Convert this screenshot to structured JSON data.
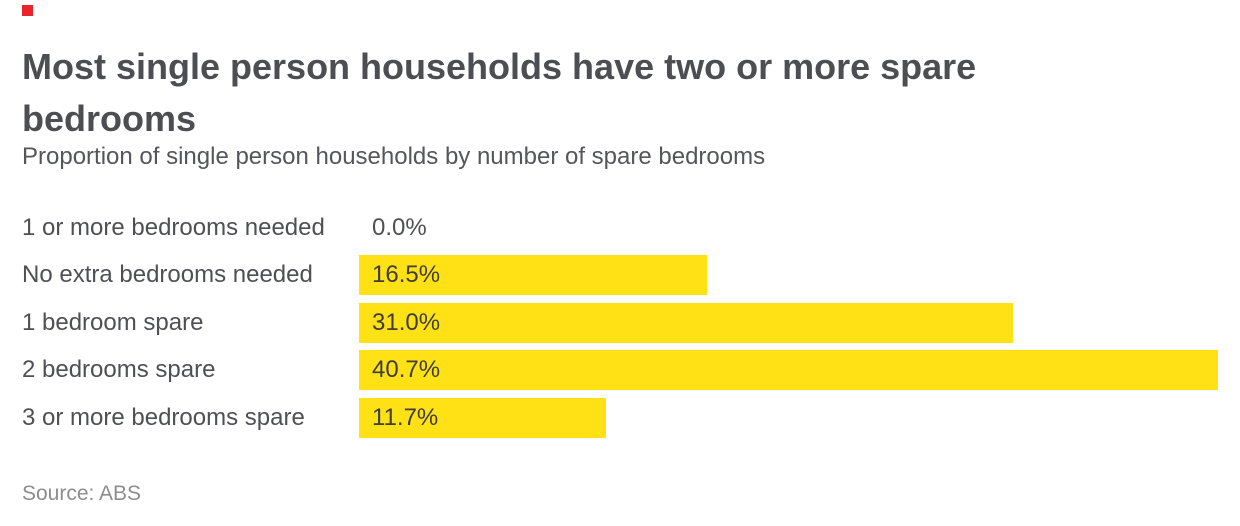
{
  "brand": {
    "marker_color": "#e8252b"
  },
  "chart_data": {
    "type": "bar",
    "orientation": "horizontal",
    "title": "Most single person households have two or more spare bedrooms",
    "title_lines": {
      "0": "Most single person households have two or more spare",
      "1": "bedrooms"
    },
    "subtitle": "Proportion of single person households by number of spare bedrooms",
    "categories": [
      "1 or more bedrooms needed",
      "No extra bedrooms needed",
      "1 bedroom spare",
      "2 bedrooms spare",
      "3 or more bedrooms spare"
    ],
    "values": [
      0.0,
      16.5,
      31.0,
      40.7,
      11.7
    ],
    "value_labels": [
      "0.0%",
      "16.5%",
      "31.0%",
      "40.7%",
      "11.7%"
    ],
    "xlabel": "",
    "ylabel": "",
    "xlim": [
      0,
      40.7
    ],
    "grid": false,
    "legend": false,
    "bar_color": "#ffe116",
    "source": "Source: ABS"
  },
  "colors": {
    "background": "#ffffff",
    "title": "#4d4e52",
    "subtitle": "#55565a",
    "category_label": "#4f5054",
    "value_label": "#3d3d36",
    "source": "#8d8d8d",
    "bar": "#ffe116",
    "marker": "#e8252b"
  }
}
